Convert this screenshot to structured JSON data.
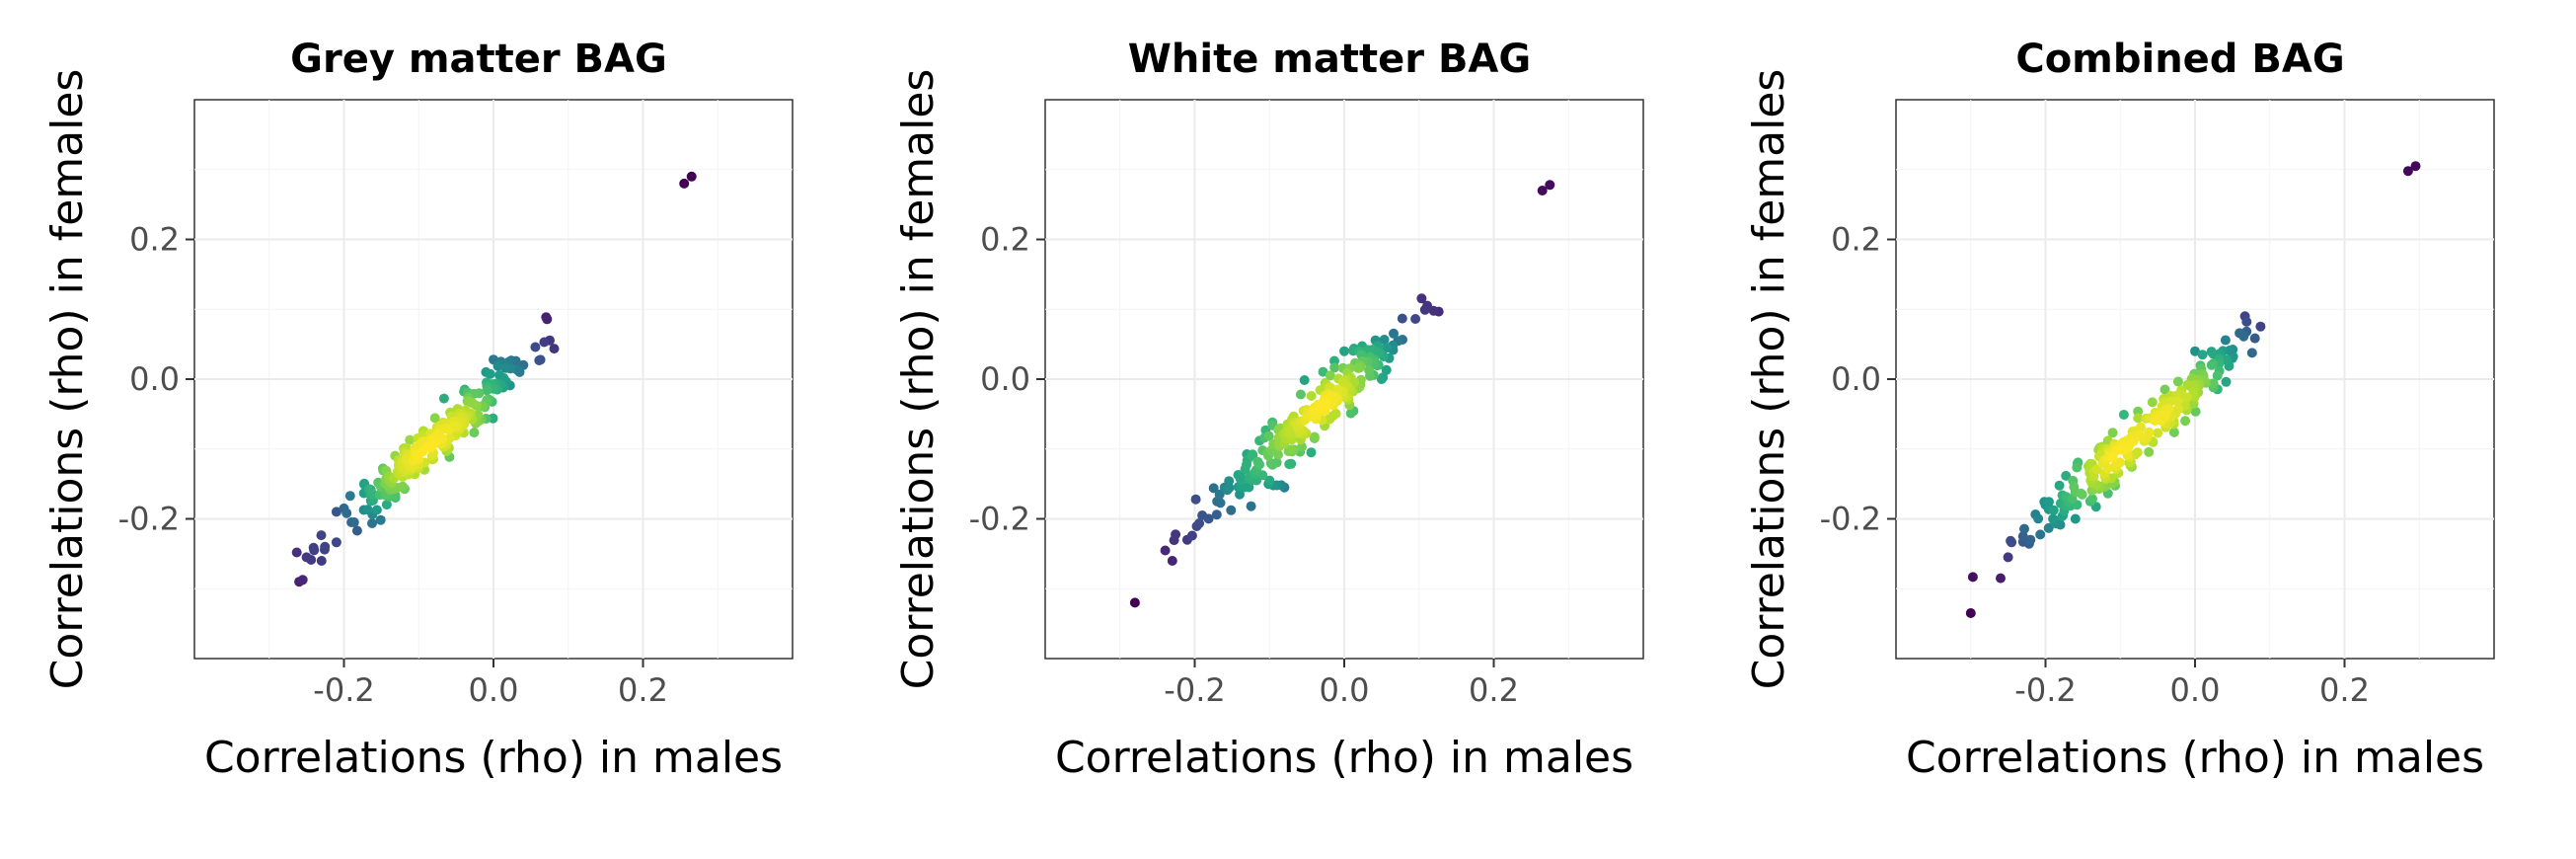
{
  "chart_data": [
    {
      "type": "scatter",
      "title": "Grey matter BAG",
      "xlabel": "Correlations (rho) in males",
      "ylabel": "Correlations (rho) in females",
      "xlim": [
        -0.4,
        0.4
      ],
      "ylim": [
        -0.4,
        0.4
      ],
      "xticks": [
        -0.2,
        0.0,
        0.2
      ],
      "yticks": [
        -0.2,
        0.0,
        0.2
      ],
      "xtick_labels": [
        "-0.2",
        "0.0",
        "0.2"
      ],
      "ytick_labels": [
        "-0.2",
        "0.0",
        "0.2"
      ],
      "grid": true,
      "color_scale": "viridis (point density)",
      "cloud": {
        "center": [
          -0.08,
          -0.09
        ],
        "slope": 0.95,
        "spread": 0.065,
        "cross_spread": 0.018,
        "n": 230,
        "seed": 11
      },
      "points": [
        {
          "x": 0.255,
          "y": 0.28
        },
        {
          "x": 0.265,
          "y": 0.29
        },
        {
          "x": -0.26,
          "y": -0.29
        },
        {
          "x": -0.25,
          "y": -0.255
        },
        {
          "x": -0.24,
          "y": -0.245
        },
        {
          "x": -0.23,
          "y": -0.26
        },
        {
          "x": -0.21,
          "y": -0.19
        },
        {
          "x": -0.19,
          "y": -0.205
        },
        {
          "x": -0.2,
          "y": -0.185
        },
        {
          "x": 0.0,
          "y": 0.028
        },
        {
          "x": 0.01,
          "y": 0.025
        },
        {
          "x": 0.03,
          "y": 0.026
        },
        {
          "x": 0.04,
          "y": 0.02
        },
        {
          "x": 0.035,
          "y": 0.01
        },
        {
          "x": 0.005,
          "y": -0.015
        },
        {
          "x": -0.01,
          "y": 0.01
        }
      ]
    },
    {
      "type": "scatter",
      "title": "White matter BAG",
      "xlabel": "Correlations (rho) in males",
      "ylabel": "Correlations (rho) in females",
      "xlim": [
        -0.4,
        0.4
      ],
      "ylim": [
        -0.4,
        0.4
      ],
      "xticks": [
        -0.2,
        0.0,
        0.2
      ],
      "yticks": [
        -0.2,
        0.0,
        0.2
      ],
      "xtick_labels": [
        "-0.2",
        "0.0",
        "0.2"
      ],
      "ytick_labels": [
        "-0.2",
        "0.0",
        "0.2"
      ],
      "grid": true,
      "color_scale": "viridis (point density)",
      "cloud": {
        "center": [
          -0.05,
          -0.06
        ],
        "slope": 0.95,
        "spread": 0.07,
        "cross_spread": 0.02,
        "n": 230,
        "seed": 23
      },
      "points": [
        {
          "x": 0.265,
          "y": 0.27
        },
        {
          "x": 0.275,
          "y": 0.278
        },
        {
          "x": -0.28,
          "y": -0.32
        },
        {
          "x": -0.23,
          "y": -0.26
        },
        {
          "x": -0.21,
          "y": -0.23
        },
        {
          "x": -0.19,
          "y": -0.195
        },
        {
          "x": -0.17,
          "y": -0.175
        },
        {
          "x": -0.16,
          "y": -0.155
        },
        {
          "x": -0.14,
          "y": -0.165
        },
        {
          "x": 0.0,
          "y": 0.04
        },
        {
          "x": 0.02,
          "y": 0.04
        },
        {
          "x": 0.04,
          "y": 0.028
        },
        {
          "x": 0.06,
          "y": 0.03
        },
        {
          "x": 0.05,
          "y": 0.0
        },
        {
          "x": -0.1,
          "y": -0.145
        },
        {
          "x": -0.08,
          "y": -0.155
        }
      ]
    },
    {
      "type": "scatter",
      "title": "Combined BAG",
      "xlabel": "Correlations (rho) in males",
      "ylabel": "Correlations (rho) in females",
      "xlim": [
        -0.4,
        0.4
      ],
      "ylim": [
        -0.4,
        0.4
      ],
      "xticks": [
        -0.2,
        0.0,
        0.2
      ],
      "yticks": [
        -0.2,
        0.0,
        0.2
      ],
      "xtick_labels": [
        "-0.2",
        "0.0",
        "0.2"
      ],
      "ytick_labels": [
        "-0.2",
        "0.0",
        "0.2"
      ],
      "grid": true,
      "color_scale": "viridis (point density)",
      "cloud": {
        "center": [
          -0.08,
          -0.085
        ],
        "slope": 0.95,
        "spread": 0.07,
        "cross_spread": 0.02,
        "n": 230,
        "seed": 37
      },
      "points": [
        {
          "x": 0.285,
          "y": 0.298
        },
        {
          "x": 0.295,
          "y": 0.305
        },
        {
          "x": -0.3,
          "y": -0.335
        },
        {
          "x": -0.26,
          "y": -0.285
        },
        {
          "x": -0.25,
          "y": -0.255
        },
        {
          "x": -0.23,
          "y": -0.225
        },
        {
          "x": -0.22,
          "y": -0.23
        },
        {
          "x": -0.2,
          "y": -0.18
        },
        {
          "x": -0.19,
          "y": -0.2
        },
        {
          "x": 0.0,
          "y": 0.04
        },
        {
          "x": 0.01,
          "y": 0.035
        },
        {
          "x": 0.04,
          "y": 0.028
        },
        {
          "x": 0.05,
          "y": 0.03
        },
        {
          "x": 0.03,
          "y": 0.005
        },
        {
          "x": -0.16,
          "y": -0.2
        },
        {
          "x": -0.14,
          "y": -0.175
        }
      ]
    }
  ]
}
